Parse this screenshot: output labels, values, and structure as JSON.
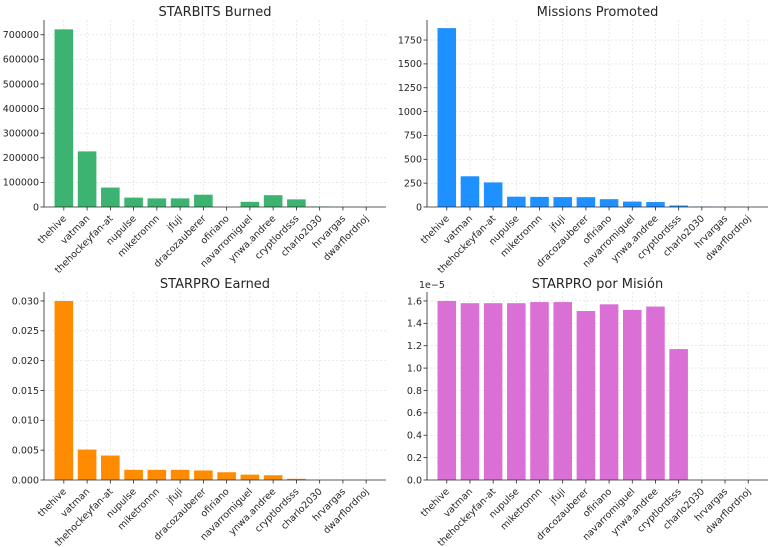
{
  "chart_data": [
    {
      "type": "bar",
      "title": "STARBITS Burned",
      "xlabel": "",
      "ylabel": "",
      "color": "#3cb371",
      "ylim": [
        0,
        760000
      ],
      "yticks": [
        0,
        100000,
        200000,
        300000,
        400000,
        500000,
        600000,
        700000
      ],
      "ytick_labels": [
        "0",
        "100000",
        "200000",
        "300000",
        "400000",
        "500000",
        "600000",
        "700000"
      ],
      "y_offset_label": "",
      "categories": [
        "thehive",
        "vatman",
        "thehockeyfan-at",
        "nupulse",
        "miketronnn",
        "jfuji",
        "dracozauberer",
        "ofiriano",
        "navarromiguel",
        "ynwa.andree",
        "cryptlordsss",
        "charlo2030",
        "hrvargas",
        "dwarflordnoj"
      ],
      "values": [
        722000,
        226000,
        79000,
        38000,
        35000,
        35000,
        50000,
        0,
        21000,
        48000,
        31000,
        2000,
        0,
        0
      ]
    },
    {
      "type": "bar",
      "title": "Missions Promoted",
      "xlabel": "",
      "ylabel": "",
      "color": "#1e90ff",
      "ylim": [
        0,
        1960
      ],
      "yticks": [
        0,
        250,
        500,
        750,
        1000,
        1250,
        1500,
        1750
      ],
      "ytick_labels": [
        "0",
        "250",
        "500",
        "750",
        "1000",
        "1250",
        "1500",
        "1750"
      ],
      "y_offset_label": "",
      "categories": [
        "thehive",
        "vatman",
        "thehockeyfan-at",
        "nupulse",
        "miketronnn",
        "jfuji",
        "dracozauberer",
        "ofiriano",
        "navarromiguel",
        "ynwa.andree",
        "cryptlordsss",
        "charlo2030",
        "hrvargas",
        "dwarflordnoj"
      ],
      "values": [
        1875,
        322,
        258,
        108,
        106,
        104,
        103,
        82,
        57,
        52,
        16,
        3,
        1,
        0
      ]
    },
    {
      "type": "bar",
      "title": "STARPRO Earned",
      "xlabel": "",
      "ylabel": "",
      "color": "#ff8c00",
      "ylim": [
        0,
        0.0315
      ],
      "yticks": [
        0,
        0.005,
        0.01,
        0.015,
        0.02,
        0.025,
        0.03
      ],
      "ytick_labels": [
        "0.000",
        "0.005",
        "0.010",
        "0.015",
        "0.020",
        "0.025",
        "0.030"
      ],
      "y_offset_label": "",
      "categories": [
        "thehive",
        "vatman",
        "thehockeyfan-at",
        "nupulse",
        "miketronnn",
        "jfuji",
        "dracozauberer",
        "ofiriano",
        "navarromiguel",
        "ynwa.andree",
        "cryptlordsss",
        "charlo2030",
        "hrvargas",
        "dwarflordnoj"
      ],
      "values": [
        0.03,
        0.0051,
        0.0041,
        0.0017,
        0.0017,
        0.0017,
        0.0016,
        0.0013,
        0.0009,
        0.0008,
        0.0002,
        0,
        0,
        0
      ]
    },
    {
      "type": "bar",
      "title": "STARPRO por Misión",
      "xlabel": "",
      "ylabel": "",
      "color": "#da70d6",
      "ylim": [
        0,
        1.68
      ],
      "yticks": [
        0,
        0.2,
        0.4,
        0.6,
        0.8,
        1.0,
        1.2,
        1.4,
        1.6
      ],
      "ytick_labels": [
        "0.0",
        "0.2",
        "0.4",
        "0.6",
        "0.8",
        "1.0",
        "1.2",
        "1.4",
        "1.6"
      ],
      "y_offset_label": "1e−5",
      "categories": [
        "thehive",
        "vatman",
        "thehockeyfan-at",
        "nupulse",
        "miketronnn",
        "jfuji",
        "dracozauberer",
        "ofiriano",
        "navarromiguel",
        "ynwa.andree",
        "cryptlordsss",
        "charlo2030",
        "hrvargas",
        "dwarflordnoj"
      ],
      "values": [
        1.6,
        1.58,
        1.58,
        1.58,
        1.59,
        1.59,
        1.51,
        1.57,
        1.52,
        1.55,
        1.17,
        0,
        0,
        0
      ]
    }
  ]
}
